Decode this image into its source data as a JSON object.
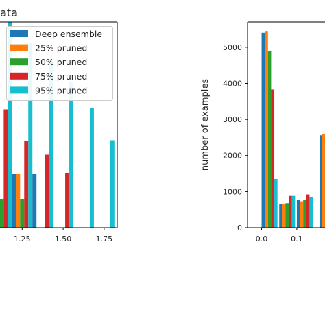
{
  "chart_data": [
    {
      "type": "bar",
      "title": "ata",
      "xlabel": "",
      "ylabel": "",
      "xlim": [
        1.115,
        1.83
      ],
      "ylim": [
        0,
        1000
      ],
      "xticks": [
        "1.25",
        "1.50",
        "1.75"
      ],
      "bin_width": 0.125,
      "bin_centers": [
        1.125,
        1.25,
        1.375,
        1.5,
        1.625,
        1.75
      ],
      "series": [
        {
          "name": "Deep ensemble",
          "color": "#1f77b4",
          "values": [
            0,
            260,
            260,
            0,
            0,
            0
          ]
        },
        {
          "name": "25% pruned",
          "color": "#ff7f0e",
          "values": [
            0,
            260,
            0,
            0,
            0,
            0
          ]
        },
        {
          "name": "50% pruned",
          "color": "#2ca02c",
          "values": [
            140,
            140,
            0,
            0,
            0,
            0
          ]
        },
        {
          "name": "75% pruned",
          "color": "#d62728",
          "values": [
            575,
            420,
            355,
            265,
            0,
            0
          ]
        },
        {
          "name": "95% pruned",
          "color": "#17becf",
          "values": [
            1000,
            900,
            815,
            710,
            580,
            425
          ]
        }
      ],
      "legend_position": "top-right"
    },
    {
      "type": "bar",
      "title": "",
      "xlabel": "",
      "ylabel": "number of examples",
      "xlim": [
        -0.04,
        0.18
      ],
      "ylim": [
        0,
        5700
      ],
      "yticks": [
        0,
        1000,
        2000,
        3000,
        4000,
        5000
      ],
      "xticks": [
        "0.0",
        "0.1"
      ],
      "bin_width": 0.05,
      "bin_centers": [
        0.025,
        0.075,
        0.125
      ],
      "series": [
        {
          "name": "Deep ensemble",
          "color": "#1f77b4",
          "values": [
            5400,
            650,
            770
          ]
        },
        {
          "name": "25% pruned",
          "color": "#ff7f0e",
          "values": [
            5450,
            660,
            730
          ]
        },
        {
          "name": "50% pruned",
          "color": "#2ca02c",
          "values": [
            4900,
            680,
            780
          ]
        },
        {
          "name": "75% pruned",
          "color": "#d62728",
          "values": [
            3830,
            880,
            920
          ]
        },
        {
          "name": "95% pruned",
          "color": "#17becf",
          "values": [
            1350,
            880,
            840
          ]
        }
      ],
      "extra_bars_right_edge": [
        {
          "color": "#1f77b4",
          "value": 2560
        },
        {
          "color": "#ff7f0e",
          "value": 2600
        }
      ]
    }
  ]
}
